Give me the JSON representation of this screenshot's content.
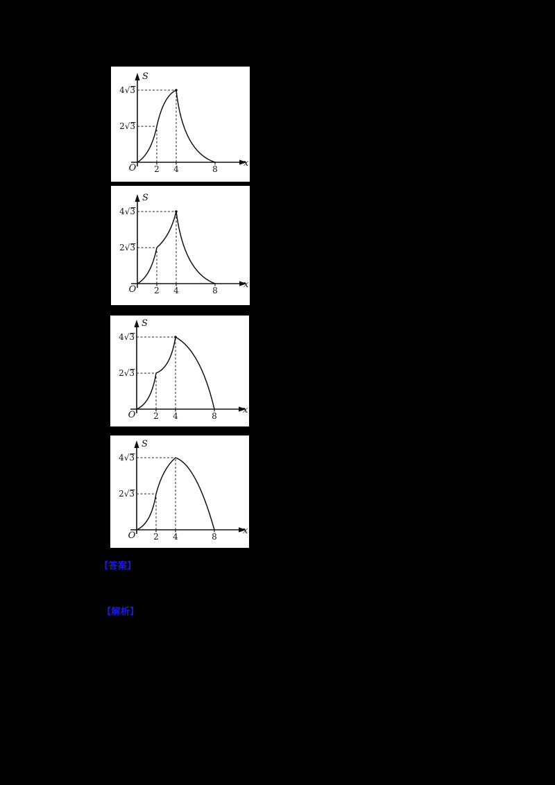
{
  "page": {
    "background": "#000000",
    "panel_background": "#ffffff",
    "link_color": "#1b1be0"
  },
  "links": [
    {
      "label": "【答案】"
    },
    {
      "label": "【解析】"
    }
  ],
  "chart_data": [
    {
      "type": "line",
      "option": "A",
      "title": "",
      "xlabel": "x",
      "ylabel": "S",
      "origin_label": "O",
      "x_ticks": [
        2,
        4,
        8
      ],
      "y_tick_labels": [
        "2√3",
        "4√3"
      ],
      "y_tick_values": [
        3.46,
        6.93
      ],
      "xlim": [
        0,
        9.5
      ],
      "ylim": [
        0,
        8.5
      ],
      "grid": false,
      "key_points": [
        [
          2,
          3.46
        ],
        [
          4,
          6.93
        ]
      ],
      "peak_dot": true,
      "shape_note": "rises with inflection to sharp peak at x=4, then concave-up decay to x=8",
      "segments": [
        {
          "p0": [
            0,
            0
          ],
          "c": [
            1.4,
            0.8
          ],
          "p1": [
            2,
            3.46
          ]
        },
        {
          "p0": [
            2,
            3.46
          ],
          "c": [
            2.7,
            6.4
          ],
          "p1": [
            4,
            6.93
          ]
        },
        {
          "p0": [
            4,
            6.93
          ],
          "c": [
            4.7,
            1.0
          ],
          "p1": [
            8,
            0
          ]
        }
      ]
    },
    {
      "type": "line",
      "option": "B",
      "title": "",
      "xlabel": "x",
      "ylabel": "S",
      "origin_label": "O",
      "x_ticks": [
        2,
        4,
        8
      ],
      "y_tick_labels": [
        "2√3",
        "4√3"
      ],
      "y_tick_values": [
        3.46,
        6.93
      ],
      "xlim": [
        0,
        9.5
      ],
      "ylim": [
        0,
        8.5
      ],
      "grid": false,
      "key_points": [
        [
          2,
          3.46
        ],
        [
          4,
          6.93
        ]
      ],
      "peak_dot": true,
      "shape_note": "concave-up rise to sharp peak at x=4, then concave-up decay to x=8",
      "segments": [
        {
          "p0": [
            0,
            0
          ],
          "c": [
            1.4,
            0.7
          ],
          "p1": [
            2,
            3.46
          ]
        },
        {
          "p0": [
            2,
            3.46
          ],
          "c": [
            3.4,
            4.6
          ],
          "p1": [
            4,
            6.93
          ]
        },
        {
          "p0": [
            4,
            6.93
          ],
          "c": [
            4.8,
            1.1
          ],
          "p1": [
            8,
            0
          ]
        }
      ]
    },
    {
      "type": "line",
      "option": "C",
      "title": "",
      "xlabel": "x",
      "ylabel": "S",
      "origin_label": "O",
      "x_ticks": [
        2,
        4,
        8
      ],
      "y_tick_labels": [
        "2√3",
        "4√3"
      ],
      "y_tick_values": [
        3.46,
        6.93
      ],
      "xlim": [
        0,
        9.5
      ],
      "ylim": [
        0,
        8.5
      ],
      "grid": false,
      "key_points": [
        [
          2,
          3.46
        ],
        [
          4,
          6.93
        ]
      ],
      "peak_dot": true,
      "shape_note": "two concave-up arcs up to x=4, then outward-bulging arc falling steeply to x=8",
      "segments": [
        {
          "p0": [
            0,
            0
          ],
          "c": [
            1.5,
            0.6
          ],
          "p1": [
            2,
            3.46
          ]
        },
        {
          "p0": [
            2,
            3.46
          ],
          "c": [
            3.5,
            4.0
          ],
          "p1": [
            4,
            6.93
          ]
        },
        {
          "p0": [
            4,
            6.93
          ],
          "c": [
            6.6,
            5.6
          ],
          "p1": [
            8,
            0
          ]
        }
      ]
    },
    {
      "type": "line",
      "option": "D",
      "title": "",
      "xlabel": "x",
      "ylabel": "S",
      "origin_label": "O",
      "x_ticks": [
        2,
        4,
        8
      ],
      "y_tick_labels": [
        "2√3",
        "4√3"
      ],
      "y_tick_values": [
        3.46,
        6.93
      ],
      "xlim": [
        0,
        9.5
      ],
      "ylim": [
        0,
        8.5
      ],
      "grid": false,
      "key_points": [
        [
          2,
          3.46
        ],
        [
          4,
          6.93
        ]
      ],
      "peak_dot": false,
      "shape_note": "rise to smooth rounded dome maximum at x=4, concave-down descent steepening to x=8",
      "segments": [
        {
          "p0": [
            0,
            0
          ],
          "c": [
            1.5,
            0.6
          ],
          "p1": [
            2,
            3.46
          ]
        },
        {
          "p0": [
            2,
            3.46
          ],
          "c": [
            2.7,
            5.9
          ],
          "p1": [
            4,
            6.93
          ]
        },
        {
          "p0": [
            4,
            6.93
          ],
          "c": [
            6.1,
            6.3
          ],
          "p1": [
            8,
            0
          ]
        }
      ]
    }
  ]
}
